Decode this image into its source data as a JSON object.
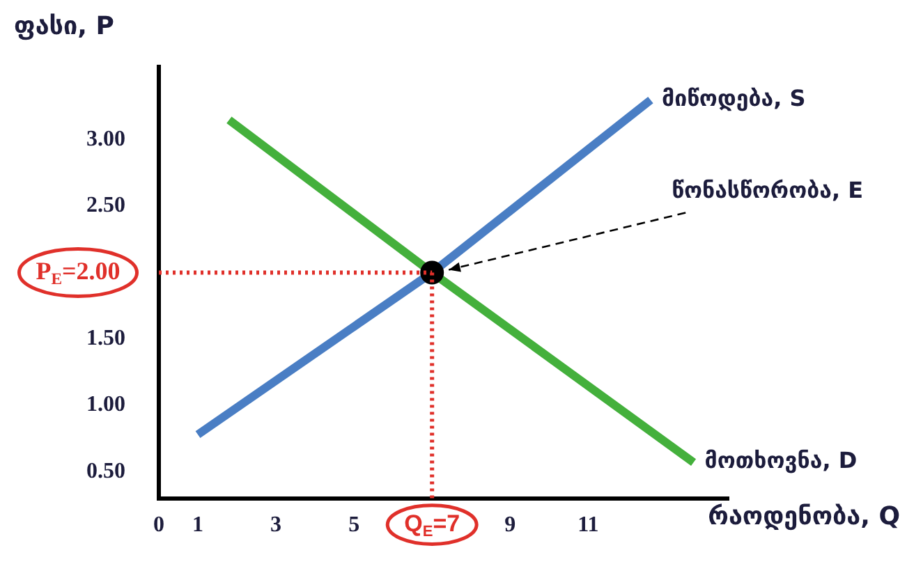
{
  "chart_data": {
    "type": "line",
    "xlabel": "რაოდენობა, Q",
    "ylabel": "ფასი, P",
    "xlim": [
      0,
      14.6
    ],
    "ylim": [
      0.3,
      3.55
    ],
    "xticks": [
      0,
      1,
      3,
      5,
      9,
      11
    ],
    "yticks": [
      {
        "value": 0.5,
        "label": "0.50"
      },
      {
        "value": 1,
        "label": "1.00"
      },
      {
        "value": 1.5,
        "label": "1.50"
      },
      {
        "value": 2.5,
        "label": "2.50"
      },
      {
        "value": 3,
        "label": "3.00"
      }
    ],
    "series": [
      {
        "name": "მიწოდება, S",
        "color": "#4a7ec4",
        "marker": "none",
        "x": [
          1,
          7,
          12.6
        ],
        "values": [
          0.78,
          2,
          3.3
        ]
      },
      {
        "name": "მოთხოვნა, D",
        "color": "#44b03c",
        "marker": "none",
        "x": [
          1.8,
          7,
          13.7
        ],
        "values": [
          3.15,
          2,
          0.57
        ]
      },
      {
        "type": "scatter",
        "color": "#000000",
        "marker": "circle",
        "x": [
          7
        ],
        "values": [
          2
        ]
      }
    ],
    "ref_lines": [
      {
        "axis": "y",
        "value": 2,
        "label": "P$_{E}$=2.00",
        "color": "#e0302a",
        "line_style": "dotted"
      },
      {
        "axis": "x",
        "value": 7,
        "label": "Q$_{E}$=7",
        "color": "#e0302a",
        "line_style": "dotted"
      }
    ],
    "annotations": [
      "წონასწორობა, E"
    ],
    "grid": false,
    "legend": false,
    "line_style": "solid"
  }
}
